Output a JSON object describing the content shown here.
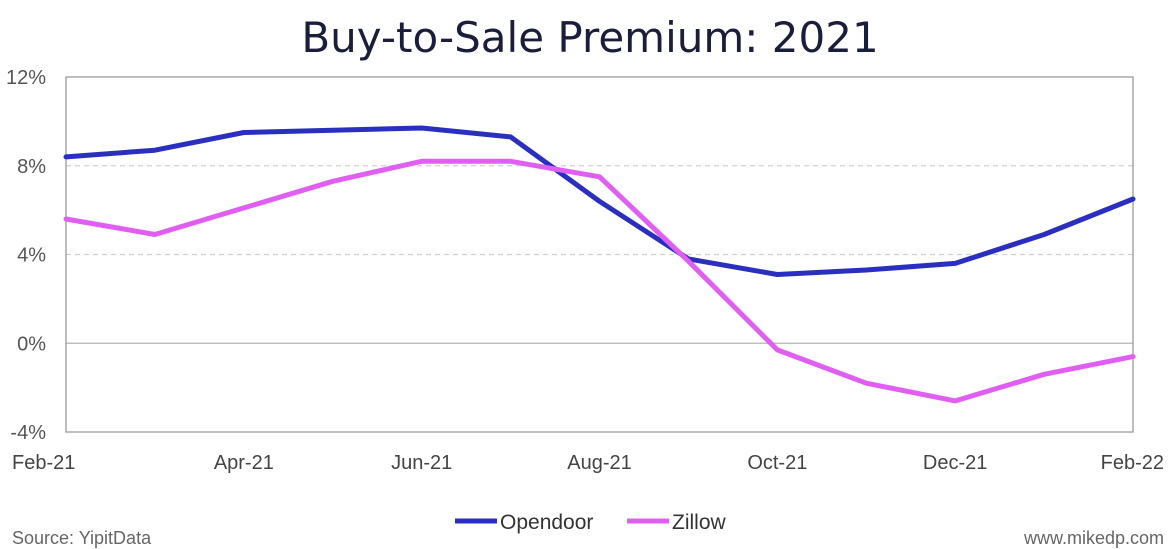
{
  "chart_data": {
    "type": "line",
    "title": "Buy-to-Sale Premium: 2021",
    "xlabel": "",
    "ylabel": "",
    "ylim": [
      -4,
      12
    ],
    "yticks": [
      -4,
      0,
      4,
      8,
      12
    ],
    "ytick_labels": [
      "-4%",
      "0%",
      "4%",
      "8%",
      "12%"
    ],
    "dashed_gridlines_at": [
      4,
      8
    ],
    "categories": [
      "Feb-21",
      "Mar-21",
      "Apr-21",
      "May-21",
      "Jun-21",
      "Jul-21",
      "Aug-21",
      "Sep-21",
      "Oct-21",
      "Nov-21",
      "Dec-21",
      "Jan-22",
      "Feb-22"
    ],
    "xtick_labels": [
      "Feb-21",
      "Apr-21",
      "Jun-21",
      "Aug-21",
      "Oct-21",
      "Dec-21",
      "Feb-22"
    ],
    "xtick_indices": [
      0,
      2,
      4,
      6,
      8,
      10,
      12
    ],
    "series": [
      {
        "name": "Opendoor",
        "color": "#2a2fbf",
        "values": [
          8.4,
          8.7,
          9.5,
          9.6,
          9.7,
          9.3,
          6.4,
          3.8,
          3.1,
          3.3,
          3.6,
          4.9,
          6.5
        ]
      },
      {
        "name": "Zillow",
        "color": "#e05ff2",
        "values": [
          5.6,
          4.9,
          6.1,
          7.3,
          8.2,
          8.2,
          7.5,
          3.7,
          -0.3,
          -1.8,
          -2.6,
          -1.4,
          -0.6
        ]
      }
    ],
    "legend_position": "bottom-center"
  },
  "footer": {
    "source": "Source: YipitData",
    "site": "www.mikedp.com"
  },
  "colors": {
    "axis": "#9a9a9a",
    "grid": "#cfcfcf",
    "title": "#1b1e3a"
  }
}
